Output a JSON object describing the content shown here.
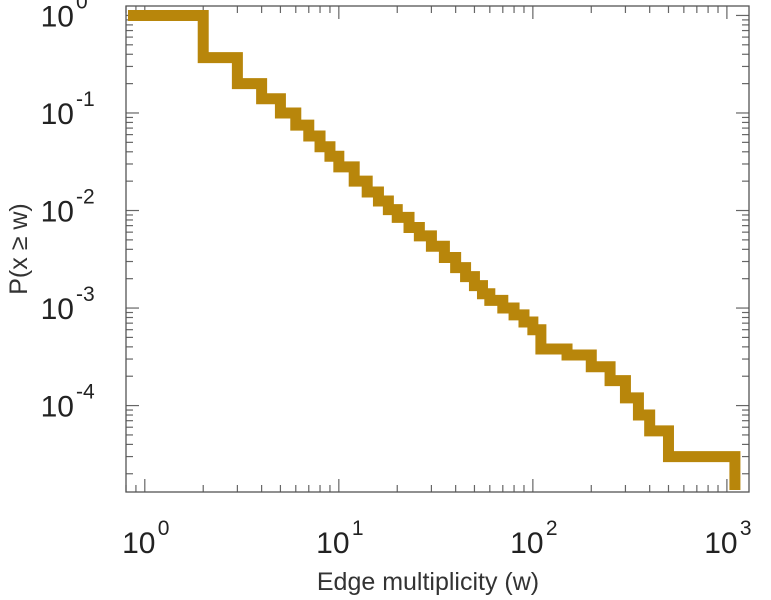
{
  "chart_data": {
    "type": "line",
    "style": "step",
    "xlabel": "Edge multiplicity (w)",
    "ylabel": "P(x ≥ w)",
    "xscale": "log",
    "yscale": "log",
    "xlim": [
      0.8,
      1300
    ],
    "ylim": [
      1.3e-05,
      1.25
    ],
    "grid": false,
    "series_color": "#B8860B",
    "xticks": [
      {
        "value": 1,
        "base": "10",
        "exp": "0"
      },
      {
        "value": 10,
        "base": "10",
        "exp": "1"
      },
      {
        "value": 100,
        "base": "10",
        "exp": "2"
      },
      {
        "value": 1000,
        "base": "10",
        "exp": "3"
      }
    ],
    "yticks": [
      {
        "value": 1,
        "base": "10",
        "exp": "0"
      },
      {
        "value": 0.1,
        "base": "10",
        "exp": "-1"
      },
      {
        "value": 0.01,
        "base": "10",
        "exp": "-2"
      },
      {
        "value": 0.001,
        "base": "10",
        "exp": "-3"
      },
      {
        "value": 0.0001,
        "base": "10",
        "exp": "-4"
      }
    ],
    "series": [
      {
        "x": [
          1,
          2,
          3,
          4,
          5,
          6,
          7,
          8,
          9,
          10,
          12,
          14,
          16,
          18,
          20,
          23,
          26,
          30,
          35,
          40,
          45,
          50,
          55,
          60,
          70,
          80,
          90,
          100,
          110,
          150,
          200,
          250,
          300,
          350,
          400,
          500,
          1100
        ],
        "y": [
          1.0,
          0.37,
          0.2,
          0.14,
          0.1,
          0.075,
          0.058,
          0.045,
          0.036,
          0.028,
          0.02,
          0.0155,
          0.0125,
          0.0102,
          0.0085,
          0.0067,
          0.0055,
          0.0043,
          0.0033,
          0.0026,
          0.0021,
          0.0017,
          0.0014,
          0.0012,
          0.001,
          0.00085,
          0.00072,
          0.0006,
          0.00038,
          0.00033,
          0.00025,
          0.00018,
          0.00012,
          8e-05,
          5.5e-05,
          3e-05,
          2e-05
        ]
      }
    ]
  }
}
